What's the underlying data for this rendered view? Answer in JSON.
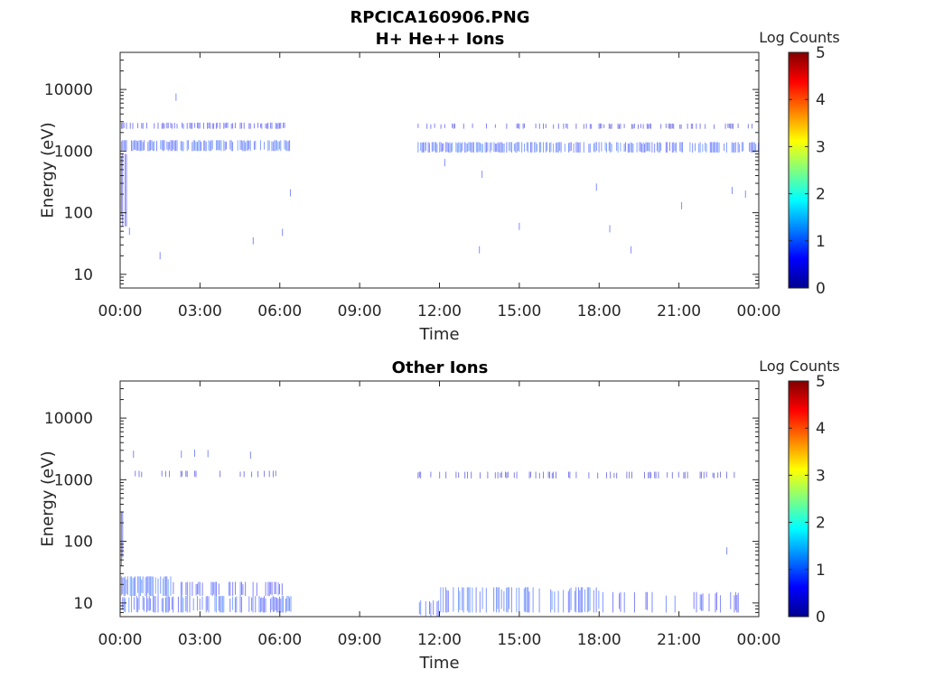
{
  "figure": {
    "title": "RPCICA160906.PNG"
  },
  "chart_data": [
    {
      "type": "heatmap",
      "title": "H+ He++ Ions",
      "xlabel": "Time",
      "ylabel": "Energy (eV)",
      "x_ticks": [
        "00:00",
        "03:00",
        "06:00",
        "09:00",
        "12:00",
        "15:00",
        "18:00",
        "21:00",
        "00:00"
      ],
      "x_range_hours": [
        0,
        24
      ],
      "y_scale": "log",
      "y_range": [
        6,
        40000
      ],
      "y_ticks": [
        10,
        100,
        1000,
        10000
      ],
      "y_tick_labels": [
        "10",
        "100",
        "1000",
        "10000"
      ],
      "colorbar": {
        "label": "Log Counts",
        "range": [
          0,
          5
        ],
        "ticks": [
          "0",
          "1",
          "2",
          "3",
          "4",
          "5"
        ],
        "colormap": "jet"
      },
      "bands": [
        {
          "t_start": 0.0,
          "t_end": 6.4,
          "e_low": 1000,
          "e_high": 1500,
          "log_counts": 0.9,
          "density": 0.75
        },
        {
          "t_start": 0.0,
          "t_end": 6.2,
          "e_low": 2300,
          "e_high": 2900,
          "log_counts": 0.6,
          "density": 0.45
        },
        {
          "t_start": 11.2,
          "t_end": 24.0,
          "e_low": 950,
          "e_high": 1400,
          "log_counts": 0.9,
          "density": 0.7
        },
        {
          "t_start": 11.2,
          "t_end": 24.0,
          "e_low": 2300,
          "e_high": 2800,
          "log_counts": 0.5,
          "density": 0.3
        },
        {
          "t_start": 0.0,
          "t_end": 0.25,
          "e_low": 60,
          "e_high": 900,
          "log_counts": 0.7,
          "density": 0.5
        }
      ],
      "sparse_points": [
        [
          2.1,
          7500
        ],
        [
          0.35,
          50
        ],
        [
          1.5,
          20
        ],
        [
          5.0,
          35
        ],
        [
          6.1,
          48
        ],
        [
          6.4,
          210
        ],
        [
          12.2,
          650
        ],
        [
          13.5,
          25
        ],
        [
          13.6,
          420
        ],
        [
          15.0,
          60
        ],
        [
          17.9,
          260
        ],
        [
          18.4,
          55
        ],
        [
          19.2,
          25
        ],
        [
          21.1,
          130
        ],
        [
          23.0,
          230
        ],
        [
          23.5,
          200
        ]
      ]
    },
    {
      "type": "heatmap",
      "title": "Other Ions",
      "xlabel": "Time",
      "ylabel": "Energy (eV)",
      "x_ticks": [
        "00:00",
        "03:00",
        "06:00",
        "09:00",
        "12:00",
        "15:00",
        "18:00",
        "21:00",
        "00:00"
      ],
      "x_range_hours": [
        0,
        24
      ],
      "y_scale": "log",
      "y_range": [
        6,
        40000
      ],
      "y_ticks": [
        10,
        100,
        1000,
        10000
      ],
      "y_tick_labels": [
        "10",
        "100",
        "1000",
        "10000"
      ],
      "colorbar": {
        "label": "Log Counts",
        "range": [
          0,
          5
        ],
        "ticks": [
          "0",
          "1",
          "2",
          "3",
          "4",
          "5"
        ],
        "colormap": "jet"
      },
      "bands": [
        {
          "t_start": 0.0,
          "t_end": 2.0,
          "e_low": 13,
          "e_high": 27,
          "log_counts": 1.0,
          "density": 0.8
        },
        {
          "t_start": 0.0,
          "t_end": 6.5,
          "e_low": 7,
          "e_high": 13,
          "log_counts": 0.9,
          "density": 0.55
        },
        {
          "t_start": 2.0,
          "t_end": 6.5,
          "e_low": 13,
          "e_high": 22,
          "log_counts": 0.7,
          "density": 0.35
        },
        {
          "t_start": 11.2,
          "t_end": 12.0,
          "e_low": 6,
          "e_high": 11,
          "log_counts": 0.8,
          "density": 0.5
        },
        {
          "t_start": 12.0,
          "t_end": 18.0,
          "e_low": 7,
          "e_high": 18,
          "log_counts": 0.9,
          "density": 0.5
        },
        {
          "t_start": 18.0,
          "t_end": 23.5,
          "e_low": 7,
          "e_high": 15,
          "log_counts": 0.7,
          "density": 0.2
        },
        {
          "t_start": 0.0,
          "t_end": 6.4,
          "e_low": 1100,
          "e_high": 1400,
          "log_counts": 0.4,
          "density": 0.15
        },
        {
          "t_start": 11.2,
          "t_end": 23.5,
          "e_low": 1050,
          "e_high": 1350,
          "log_counts": 0.4,
          "density": 0.25
        },
        {
          "t_start": 0.0,
          "t_end": 0.2,
          "e_low": 40,
          "e_high": 300,
          "log_counts": 0.7,
          "density": 0.5
        }
      ],
      "sparse_points": [
        [
          0.5,
          2600
        ],
        [
          2.3,
          2600
        ],
        [
          2.8,
          2700
        ],
        [
          3.3,
          2650
        ],
        [
          4.9,
          2500
        ],
        [
          22.8,
          70
        ]
      ]
    }
  ]
}
